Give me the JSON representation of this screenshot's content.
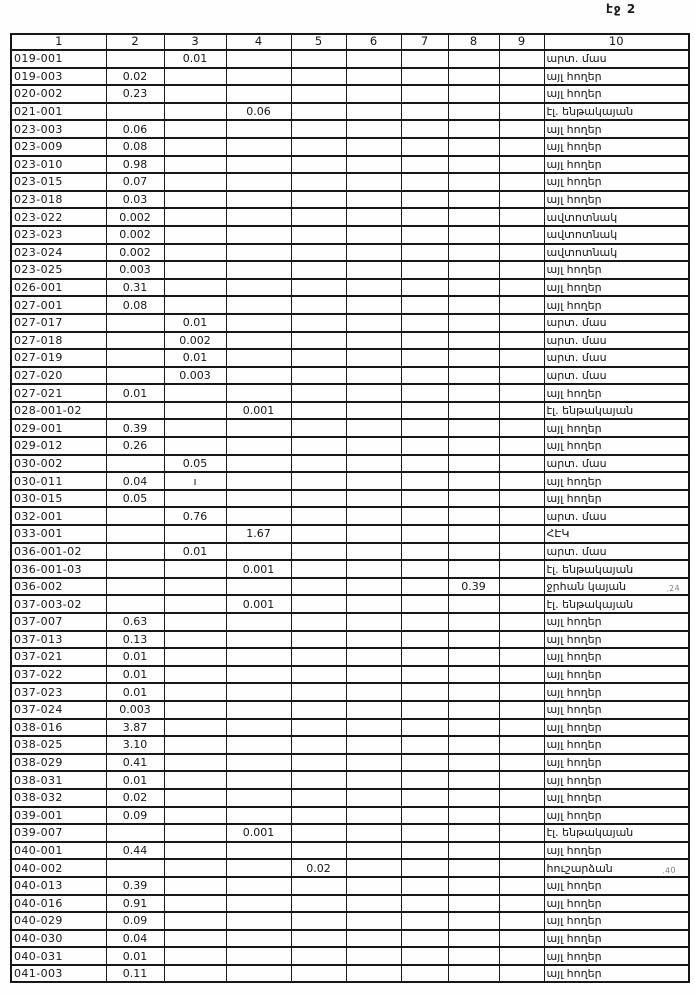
{
  "page": {
    "label": "էջ 2"
  },
  "margin_marks": [
    ".24",
    ".40"
  ],
  "table": {
    "headers": [
      "1",
      "2",
      "3",
      "4",
      "5",
      "6",
      "7",
      "8",
      "9",
      "10"
    ],
    "rows": [
      {
        "c1": "019-001",
        "c3": "0.01",
        "c10": "արտ. մաս"
      },
      {
        "c1": "019-003",
        "c2": "0.02",
        "c10": "այլ հողեր"
      },
      {
        "c1": "020-002",
        "c2": "0.23",
        "c10": "այլ հողեր"
      },
      {
        "c1": "021-001",
        "c4": "0.06",
        "c10": "էլ. ենթակայան"
      },
      {
        "c1": "023-003",
        "c2": "0.06",
        "c10": "այլ հողեր"
      },
      {
        "c1": "023-009",
        "c2": "0.08",
        "c10": "այլ հողեր"
      },
      {
        "c1": "023-010",
        "c2": "0.98",
        "c10": "այլ հողեր"
      },
      {
        "c1": "023-015",
        "c2": "0.07",
        "c10": "այլ հողեր"
      },
      {
        "c1": "023-018",
        "c2": "0.03",
        "c10": "այլ հողեր"
      },
      {
        "c1": "023-022",
        "c2": "0.002",
        "c10": "ավտոտնակ"
      },
      {
        "c1": "023-023",
        "c2": "0.002",
        "c10": "ավտոտնակ"
      },
      {
        "c1": "023-024",
        "c2": "0.002",
        "c10": "ավտոտնակ"
      },
      {
        "c1": "023-025",
        "c2": "0.003",
        "c10": "այլ հողեր"
      },
      {
        "c1": "026-001",
        "c2": "0.31",
        "c10": "այլ հողեր"
      },
      {
        "c1": "027-001",
        "c2": "0.08",
        "c10": "այլ հողեր"
      },
      {
        "c1": "027-017",
        "c3": "0.01",
        "c10": "արտ. մաս"
      },
      {
        "c1": "027-018",
        "c3": "0.002",
        "c10": "արտ. մաս"
      },
      {
        "c1": "027-019",
        "c3": "0.01",
        "c10": "արտ. մաս"
      },
      {
        "c1": "027-020",
        "c3": "0.003",
        "c10": "արտ. մաս"
      },
      {
        "c1": "027-021",
        "c2": "0.01",
        "c10": "այլ հողեր"
      },
      {
        "c1": "028-001-02",
        "c4": "0.001",
        "c10": "էլ. ենթակայան"
      },
      {
        "c1": "029-001",
        "c2": "0.39",
        "c10": "այլ հողեր"
      },
      {
        "c1": "029-012",
        "c2": "0.26",
        "c10": "այլ հողեր"
      },
      {
        "c1": "030-002",
        "c3": "0.05",
        "c10": "արտ. մաս"
      },
      {
        "c1": "030-011",
        "c2": "0.04",
        "c3": "ı",
        "c10": "այլ հողեր"
      },
      {
        "c1": "030-015",
        "c2": "0.05",
        "c10": "այլ հողեր"
      },
      {
        "c1": "032-001",
        "c3": "0.76",
        "c10": "արտ. մաս"
      },
      {
        "c1": "033-001",
        "c4": "1.67",
        "c10": "ՀԷԿ"
      },
      {
        "c1": "036-001-02",
        "c3": "0.01",
        "c10": "արտ. մաս"
      },
      {
        "c1": "036-001-03",
        "c4": "0.001",
        "c10": "էլ. ենթակայան"
      },
      {
        "c1": "036-002",
        "c8": "0.39",
        "c10": "ջրհան կայան"
      },
      {
        "c1": "037-003-02",
        "c4": "0.001",
        "c10": "էլ. ենթակայան"
      },
      {
        "c1": "037-007",
        "c2": "0.63",
        "c10": "այլ հողեր"
      },
      {
        "c1": "037-013",
        "c2": "0.13",
        "c10": "այլ հողեր"
      },
      {
        "c1": "037-021",
        "c2": "0.01",
        "c10": "այլ հողեր"
      },
      {
        "c1": "037-022",
        "c2": "0.01",
        "c10": "այլ հողեր"
      },
      {
        "c1": "037-023",
        "c2": "0.01",
        "c10": "այլ հողեր"
      },
      {
        "c1": "037-024",
        "c2": "0.003",
        "c10": "այլ հողեր"
      },
      {
        "c1": "038-016",
        "c2": "3.87",
        "c10": "այլ հողեր"
      },
      {
        "c1": "038-025",
        "c2": "3.10",
        "c10": "այլ հողեր"
      },
      {
        "c1": "038-029",
        "c2": "0.41",
        "c10": "այլ հողեր"
      },
      {
        "c1": "038-031",
        "c2": "0.01",
        "c10": "այլ հողեր"
      },
      {
        "c1": "038-032",
        "c2": "0.02",
        "c10": "այլ հողեր"
      },
      {
        "c1": "039-001",
        "c2": "0.09",
        "c10": "այլ հողեր"
      },
      {
        "c1": "039-007",
        "c4": "0.001",
        "c10": "էլ. ենթակայան"
      },
      {
        "c1": "040-001",
        "c2": "0.44",
        "c10": "այլ հողեր"
      },
      {
        "c1": "040-002",
        "c5": "0.02",
        "c10": "հուշարձան"
      },
      {
        "c1": "040-013",
        "c2": "0.39",
        "c10": "այլ հողեր"
      },
      {
        "c1": "040-016",
        "c2": "0.91",
        "c10": "այլ հողեր"
      },
      {
        "c1": "040-029",
        "c2": "0.09",
        "c10": "այլ հողեր"
      },
      {
        "c1": "040-030",
        "c2": "0.04",
        "c10": "այլ հողեր"
      },
      {
        "c1": "040-031",
        "c2": "0.01",
        "c10": "այլ հողեր"
      },
      {
        "c1": "041-003",
        "c2": "0.11",
        "c10": "այլ հողեր"
      }
    ]
  }
}
